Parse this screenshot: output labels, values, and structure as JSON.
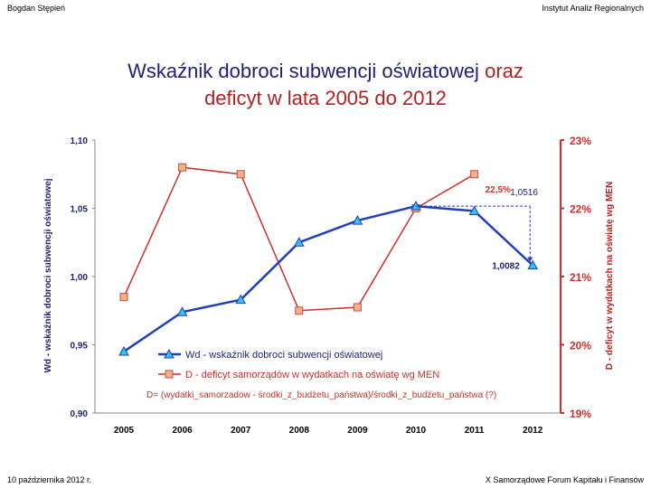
{
  "header": {
    "author": "Bogdan Stępień",
    "institution": "Instytut Analiz Regionalnych"
  },
  "footer": {
    "date": "10 października 2012 r.",
    "event": "X Samorządowe Forum Kapitału i Finansów"
  },
  "title": {
    "part1": "Wskaźnik dobroci subwencji oświatowej",
    "part2": "oraz",
    "part3": "deficyt  w lata 2005 do 2012"
  },
  "chart_data": {
    "type": "line",
    "categories": [
      "2005",
      "2006",
      "2007",
      "2008",
      "2009",
      "2010",
      "2011",
      "2012"
    ],
    "series": [
      {
        "name": "Wd - wskaźnik dobroci subwencji oświatowej",
        "axis": "left",
        "color": "#1f3fbf",
        "marker": "triangle",
        "values": [
          0.945,
          0.974,
          0.983,
          1.025,
          1.041,
          1.0516,
          1.048,
          1.0082
        ]
      },
      {
        "name": "D - deficyt samorządów w wydatkach na oświatę wg MEN",
        "axis": "right",
        "color": "#d0302a",
        "marker": "square",
        "values": [
          20.7,
          22.6,
          22.5,
          20.5,
          20.55,
          22.0,
          22.5,
          null
        ]
      }
    ],
    "ylabel_left": "Wd - wskaźnik dobroci subwencji oświatowej",
    "ylabel_right": "D - deficyt w wydatkach na oświatę wg MEN",
    "ylim_left": [
      0.9,
      1.1
    ],
    "ylim_right": [
      19,
      23
    ],
    "yticks_left": [
      "0,90",
      "0,95",
      "1,00",
      "1,05",
      "1,10"
    ],
    "yticks_right": [
      "19%",
      "20%",
      "21%",
      "22%",
      "23%"
    ],
    "annotations": {
      "d_2011": "22,5%",
      "wd_2010": "1,0516",
      "wd_2012": "1,0082",
      "formula": "D= (wydatki_samorzadow - środki_z_budżetu_państwa)/środki_z_budżetu_państwa (?)"
    },
    "grid": false,
    "legend_position": "bottom-center"
  }
}
